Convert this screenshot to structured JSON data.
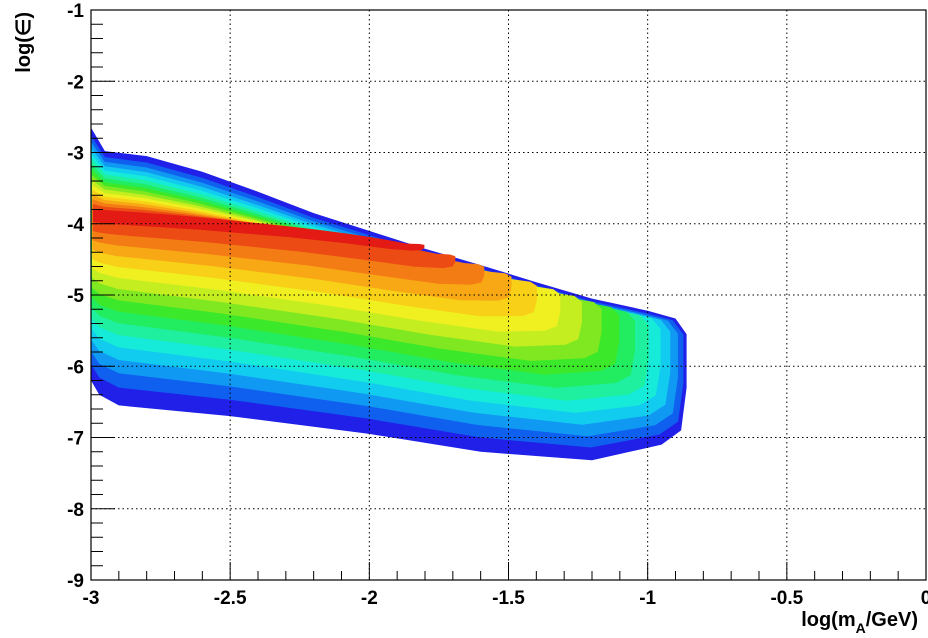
{
  "chart_data": {
    "type": "heatmap",
    "title": "",
    "xlabel": {
      "prefix": "log(m",
      "sub": "A",
      "suffix": "/GeV)"
    },
    "ylabel": "log(∈)",
    "xlim": [
      -3,
      0
    ],
    "ylim": [
      -9,
      -1
    ],
    "xticks": [
      "-3",
      "-2.5",
      "-2",
      "-1.5",
      "-1",
      "-0.5",
      "0"
    ],
    "xtick_values": [
      -3,
      -2.5,
      -2,
      -1.5,
      -1,
      -0.5,
      0
    ],
    "yticks": [
      "-1",
      "-2",
      "-3",
      "-4",
      "-5",
      "-6",
      "-7",
      "-8",
      "-9"
    ],
    "ytick_values": [
      -1,
      -2,
      -3,
      -4,
      -5,
      -6,
      -7,
      -8,
      -9
    ],
    "grid": true,
    "palette": [
      "#2020e8",
      "#1060f0",
      "#1099f2",
      "#12ccf0",
      "#15ebd8",
      "#1ef0a0",
      "#22ec60",
      "#3ce82a",
      "#80e820",
      "#c4ee20",
      "#f0f020",
      "#f8d018",
      "#f8a814",
      "#f47c14",
      "#ec4c14",
      "#e41a14"
    ],
    "region_boundary": [
      [
        -3.0,
        -2.65
      ],
      [
        -2.95,
        -2.98
      ],
      [
        -2.8,
        -3.05
      ],
      [
        -2.6,
        -3.27
      ],
      [
        -2.4,
        -3.55
      ],
      [
        -2.2,
        -3.85
      ],
      [
        -2.0,
        -4.1
      ],
      [
        -1.8,
        -4.35
      ],
      [
        -1.6,
        -4.58
      ],
      [
        -1.4,
        -4.82
      ],
      [
        -1.2,
        -5.05
      ],
      [
        -1.0,
        -5.22
      ],
      [
        -0.9,
        -5.33
      ],
      [
        -0.86,
        -5.55
      ],
      [
        -0.86,
        -6.3
      ],
      [
        -0.88,
        -6.9
      ],
      [
        -0.95,
        -7.1
      ],
      [
        -1.2,
        -7.32
      ],
      [
        -1.6,
        -7.2
      ],
      [
        -2.0,
        -6.95
      ],
      [
        -2.5,
        -6.7
      ],
      [
        -2.9,
        -6.55
      ],
      [
        -2.97,
        -6.4
      ],
      [
        -3.0,
        -6.2
      ]
    ],
    "peak": {
      "x": -2.97,
      "y": -3.85,
      "ridge_end": [
        -1.0,
        -5.7
      ]
    }
  }
}
